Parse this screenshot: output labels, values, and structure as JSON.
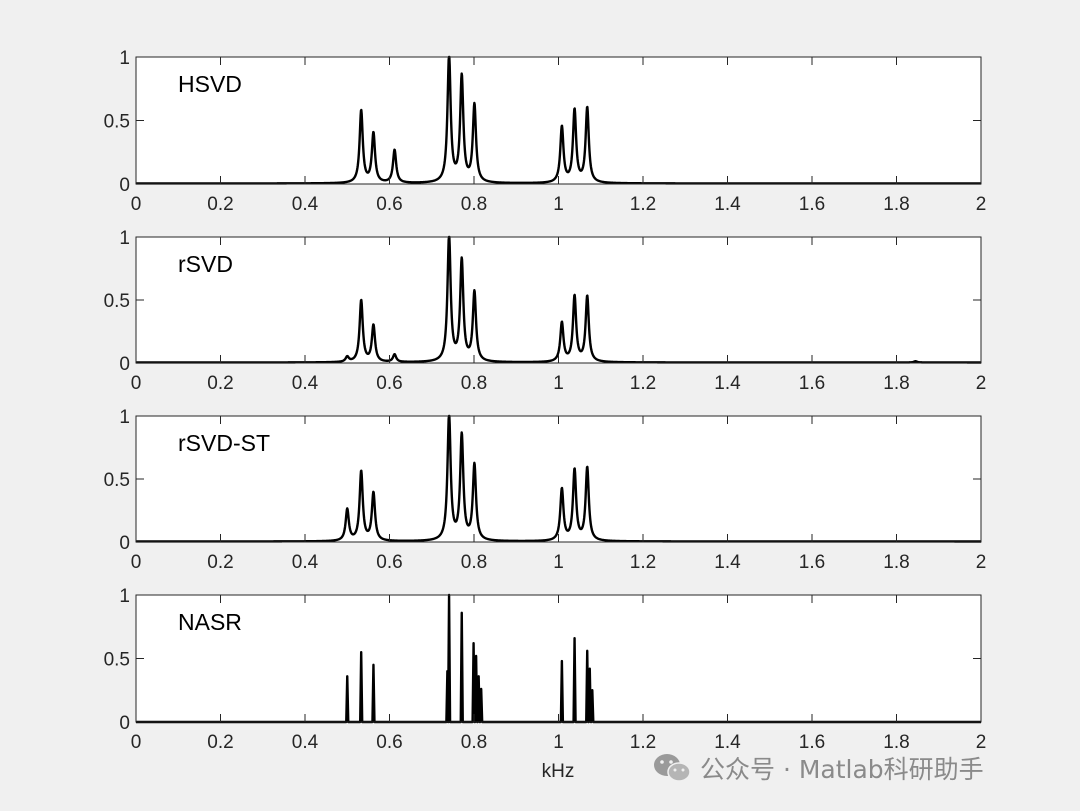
{
  "figure": {
    "background": "#f0f0f0",
    "axes_background": "#ffffff",
    "line_color": "#000000",
    "axis_color": "#262626",
    "xlabel": "kHz"
  },
  "watermark": {
    "icon": "wechat-icon",
    "text": "公众号 · Matlab科研助手",
    "color": "#8a8a8a"
  },
  "chart_data": [
    {
      "type": "line",
      "label": "HSVD",
      "xlim": [
        0,
        2
      ],
      "ylim": [
        0,
        1
      ],
      "xticks": [
        "0",
        "0.2",
        "0.4",
        "0.6",
        "0.8",
        "1",
        "1.2",
        "1.4",
        "1.6",
        "1.8",
        "2"
      ],
      "yticks": [
        "0",
        "0.5",
        "1"
      ],
      "grid": false,
      "shape": "lorentzian",
      "peaks": [
        {
          "x": 0.533,
          "y": 0.57
        },
        {
          "x": 0.562,
          "y": 0.39
        },
        {
          "x": 0.612,
          "y": 0.26
        },
        {
          "x": 0.741,
          "y": 1.0
        },
        {
          "x": 0.771,
          "y": 0.83
        },
        {
          "x": 0.801,
          "y": 0.61
        },
        {
          "x": 1.008,
          "y": 0.44
        },
        {
          "x": 1.038,
          "y": 0.57
        },
        {
          "x": 1.068,
          "y": 0.59
        }
      ]
    },
    {
      "type": "line",
      "label": "rSVD",
      "xlim": [
        0,
        2
      ],
      "ylim": [
        0,
        1
      ],
      "xticks": [
        "0",
        "0.2",
        "0.4",
        "0.6",
        "0.8",
        "1",
        "1.2",
        "1.4",
        "1.6",
        "1.8",
        "2"
      ],
      "yticks": [
        "0",
        "0.5",
        "1"
      ],
      "grid": false,
      "shape": "lorentzian",
      "peaks": [
        {
          "x": 0.5,
          "y": 0.04
        },
        {
          "x": 0.533,
          "y": 0.49
        },
        {
          "x": 0.562,
          "y": 0.29
        },
        {
          "x": 0.612,
          "y": 0.06
        },
        {
          "x": 0.741,
          "y": 1.0
        },
        {
          "x": 0.771,
          "y": 0.8
        },
        {
          "x": 0.801,
          "y": 0.55
        },
        {
          "x": 1.008,
          "y": 0.31
        },
        {
          "x": 1.038,
          "y": 0.52
        },
        {
          "x": 1.068,
          "y": 0.52
        },
        {
          "x": 1.845,
          "y": 0.01
        }
      ]
    },
    {
      "type": "line",
      "label": "rSVD-ST",
      "xlim": [
        0,
        2
      ],
      "ylim": [
        0,
        1
      ],
      "xticks": [
        "0",
        "0.2",
        "0.4",
        "0.6",
        "0.8",
        "1",
        "1.2",
        "1.4",
        "1.6",
        "1.8",
        "2"
      ],
      "yticks": [
        "0",
        "0.5",
        "1"
      ],
      "grid": false,
      "shape": "lorentzian",
      "peaks": [
        {
          "x": 0.5,
          "y": 0.25
        },
        {
          "x": 0.533,
          "y": 0.55
        },
        {
          "x": 0.562,
          "y": 0.38
        },
        {
          "x": 0.741,
          "y": 1.0
        },
        {
          "x": 0.771,
          "y": 0.83
        },
        {
          "x": 0.801,
          "y": 0.6
        },
        {
          "x": 1.008,
          "y": 0.41
        },
        {
          "x": 1.038,
          "y": 0.56
        },
        {
          "x": 1.068,
          "y": 0.58
        }
      ]
    },
    {
      "type": "line",
      "label": "NASR",
      "xlim": [
        0,
        2
      ],
      "ylim": [
        0,
        1
      ],
      "xticks": [
        "0",
        "0.2",
        "0.4",
        "0.6",
        "0.8",
        "1",
        "1.2",
        "1.4",
        "1.6",
        "1.8",
        "2"
      ],
      "yticks": [
        "0",
        "0.5",
        "1"
      ],
      "grid": false,
      "shape": "sparse",
      "peaks": [
        {
          "x": 0.5,
          "y": 0.36
        },
        {
          "x": 0.533,
          "y": 0.55
        },
        {
          "x": 0.562,
          "y": 0.45
        },
        {
          "x": 0.737,
          "y": 0.4
        },
        {
          "x": 0.741,
          "y": 1.0
        },
        {
          "x": 0.771,
          "y": 0.86
        },
        {
          "x": 0.799,
          "y": 0.62
        },
        {
          "x": 0.805,
          "y": 0.52
        },
        {
          "x": 0.811,
          "y": 0.36
        },
        {
          "x": 0.817,
          "y": 0.26
        },
        {
          "x": 1.008,
          "y": 0.48
        },
        {
          "x": 1.038,
          "y": 0.66
        },
        {
          "x": 1.068,
          "y": 0.56
        },
        {
          "x": 1.074,
          "y": 0.42
        },
        {
          "x": 1.08,
          "y": 0.25
        }
      ]
    }
  ]
}
